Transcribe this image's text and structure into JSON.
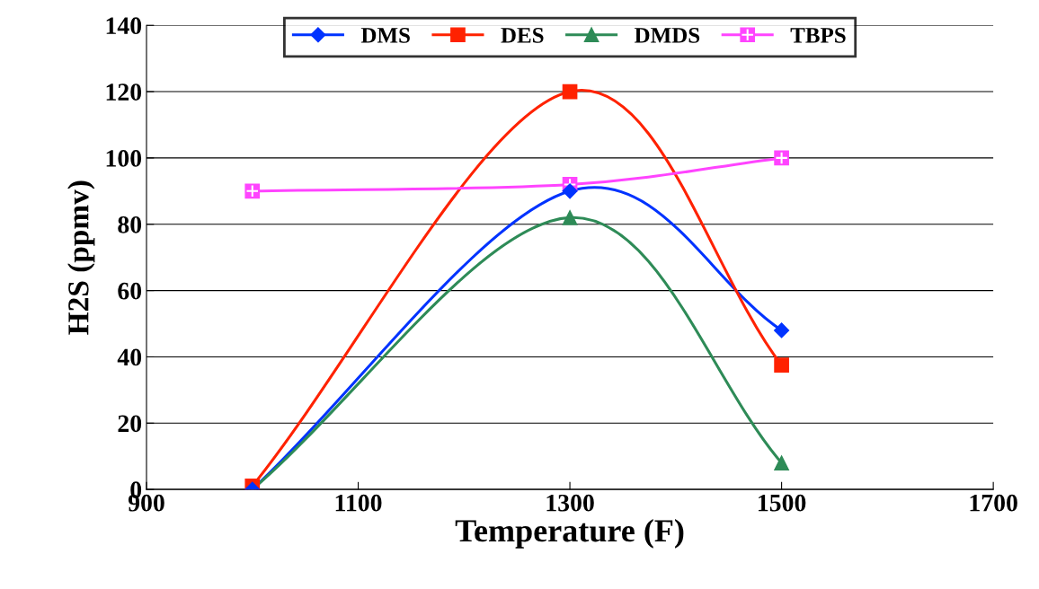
{
  "chart_data": {
    "type": "line",
    "xlabel": "Temperature (F)",
    "ylabel": "H2S (ppmv)",
    "x": [
      1000,
      1300,
      1500
    ],
    "series": [
      {
        "name": "DMS",
        "color": "#0033ff",
        "marker": "diamond",
        "values": [
          0,
          90,
          48
        ]
      },
      {
        "name": "DES",
        "color": "#ff2200",
        "marker": "square",
        "values": [
          1,
          120,
          37.5
        ]
      },
      {
        "name": "DMDS",
        "color": "#2e8b57",
        "marker": "triangle",
        "values": [
          0,
          82,
          8
        ]
      },
      {
        "name": "TBPS",
        "color": "#ff44ff",
        "marker": "square",
        "values": [
          90,
          92,
          100
        ]
      }
    ],
    "xlim": [
      900,
      1700
    ],
    "xticks": [
      900,
      1100,
      1300,
      1500,
      1700
    ],
    "ylim": [
      0,
      140
    ],
    "yticks": [
      0,
      20,
      40,
      60,
      80,
      100,
      120,
      140
    ],
    "grid": "y",
    "legend": "top"
  }
}
